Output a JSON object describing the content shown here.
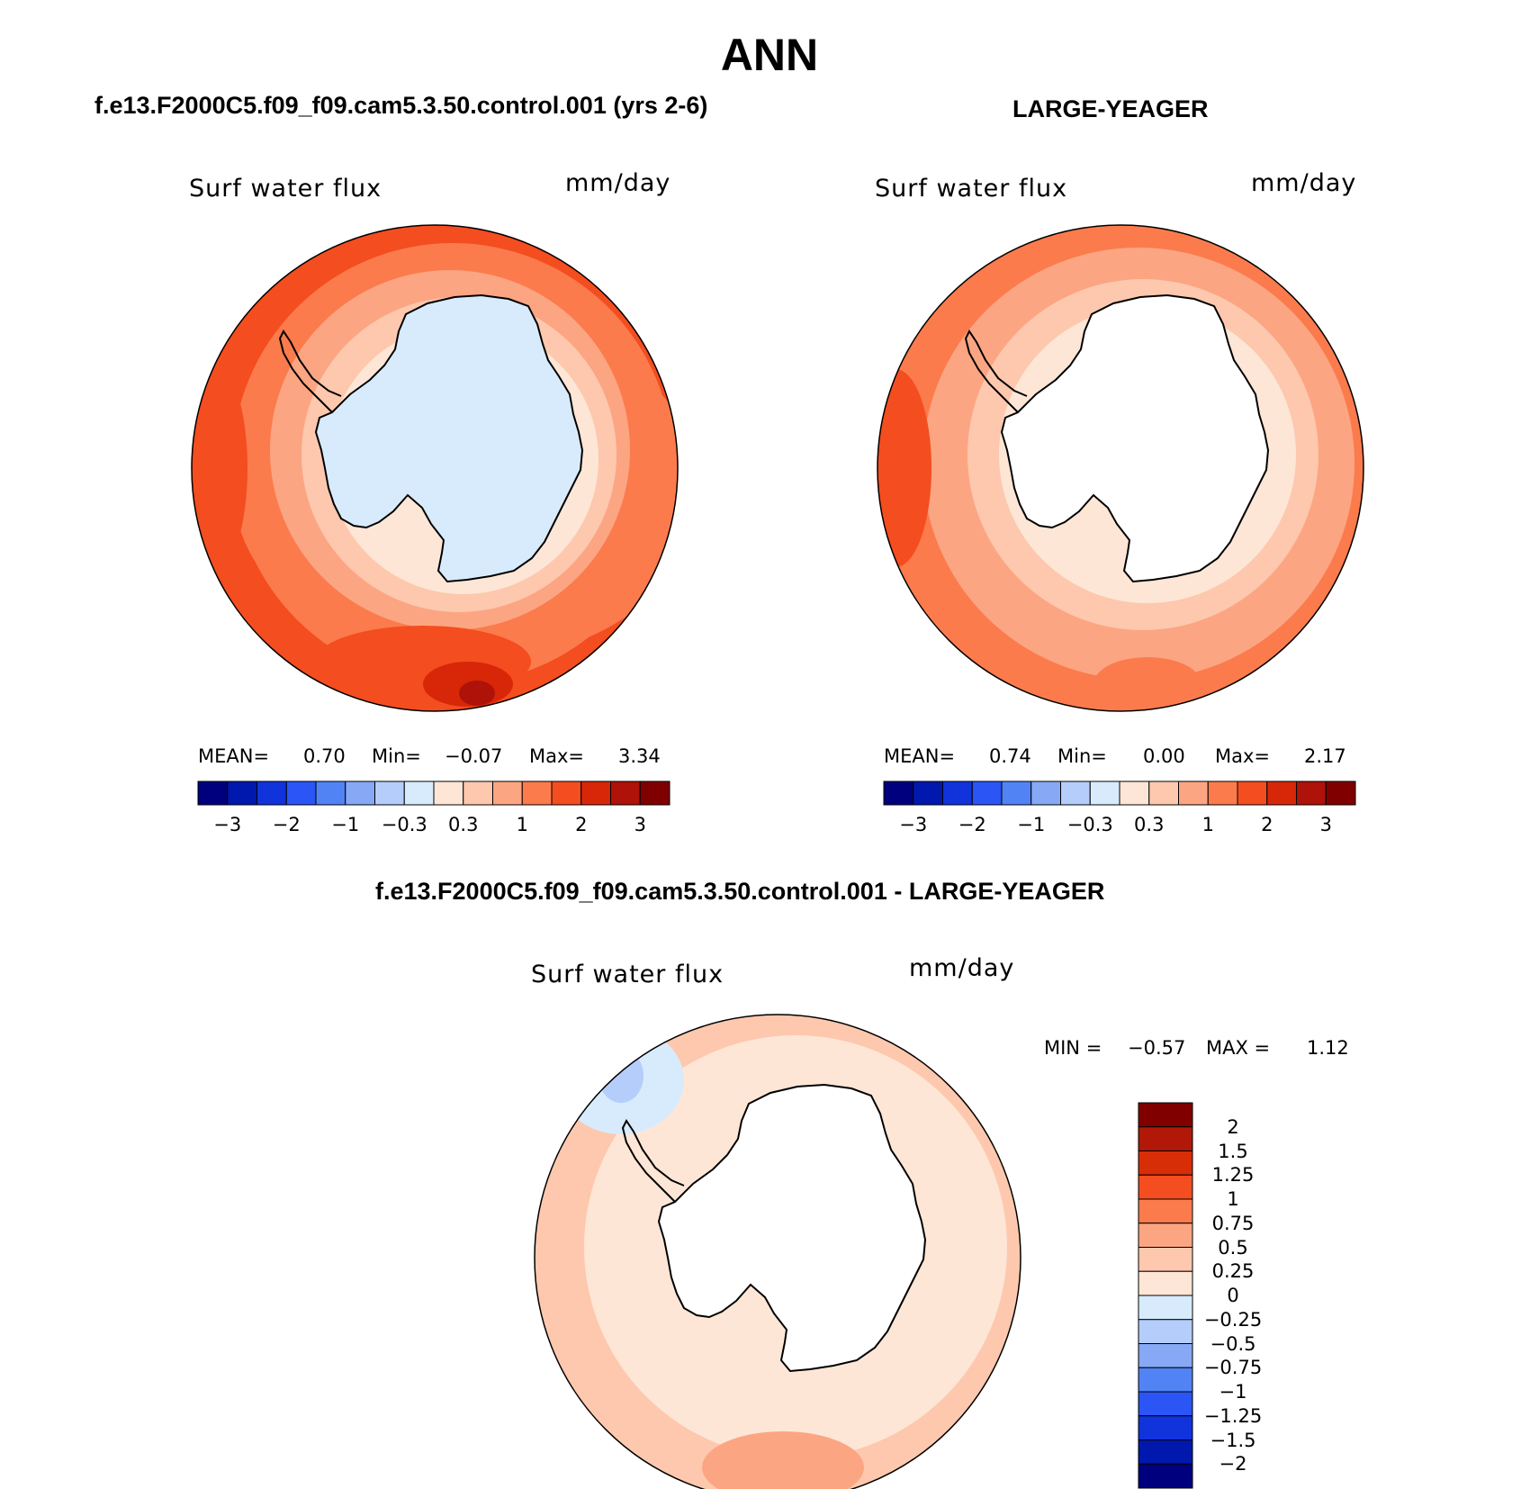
{
  "main_title": "ANN",
  "panels": [
    {
      "case_title": "f.e13.F2000C5.f09_f09.cam5.3.50.control.001 (yrs 2-6)",
      "variable": "Surf water flux",
      "units": "mm/day",
      "stats": {
        "mean_label": "MEAN=",
        "mean": "0.70",
        "min_label": "Min=",
        "min": "−0.07",
        "max_label": "Max=",
        "max": "3.34"
      }
    },
    {
      "case_title": "LARGE-YEAGER",
      "variable": "Surf water flux",
      "units": "mm/day",
      "stats": {
        "mean_label": "MEAN=",
        "mean": "0.74",
        "min_label": "Min=",
        "min": "0.00",
        "max_label": "Max=",
        "max": "2.17"
      }
    },
    {
      "case_title": "f.e13.F2000C5.f09_f09.cam5.3.50.control.001 - LARGE-YEAGER",
      "variable": "Surf water flux",
      "units": "mm/day",
      "stats": {
        "min_label": "MIN =",
        "min": "−0.57",
        "max_label": "MAX =",
        "max": "1.12"
      }
    }
  ],
  "colorbar_horizontal": {
    "colors": [
      "#00007f",
      "#0018ad",
      "#1033dc",
      "#2b55f5",
      "#5283f5",
      "#86a8f5",
      "#b5cdfb",
      "#d8ebfd",
      "#fee6d6",
      "#fdc8ad",
      "#fca583",
      "#fb7b4d",
      "#f44d1f",
      "#d72708",
      "#ae1208",
      "#800000"
    ],
    "tick_labels": [
      "−3",
      "−2",
      "−1",
      "−0.3",
      "0.3",
      "1",
      "2",
      "3"
    ]
  },
  "colorbar_vertical": {
    "colors_top_to_bottom": [
      "#800000",
      "#b11808",
      "#d72e08",
      "#f44d1f",
      "#fb7b4d",
      "#fca583",
      "#fdc8ad",
      "#fee6d6",
      "#d8ebfd",
      "#b5cdfb",
      "#86a8f5",
      "#5283f5",
      "#2b55f5",
      "#1033dc",
      "#0018ad",
      "#00007f"
    ],
    "tick_labels": [
      "2",
      "1.5",
      "1.25",
      "1",
      "0.75",
      "0.5",
      "0.25",
      "0",
      "−0.25",
      "−0.5",
      "−0.75",
      "−1",
      "−1.25",
      "−1.5",
      "−2"
    ]
  },
  "map_fields": {
    "panel1": {
      "ring_colors": [
        "#f44d1f",
        "#fb7b4d",
        "#fca583",
        "#fdc8ad",
        "#fee6d6"
      ],
      "land_color": "#d8ebfd",
      "hotspot": "#ae1208"
    },
    "panel2": {
      "ring_colors": [
        "#fb7b4d",
        "#fca583",
        "#fdc8ad",
        "#fee6d6"
      ],
      "land_color": "#ffffff"
    },
    "panel3": {
      "ring_colors": [
        "#fdc8ad",
        "#fee6d6"
      ],
      "land_color": "#ffffff",
      "neg_patch": "#d8ebfd"
    }
  }
}
